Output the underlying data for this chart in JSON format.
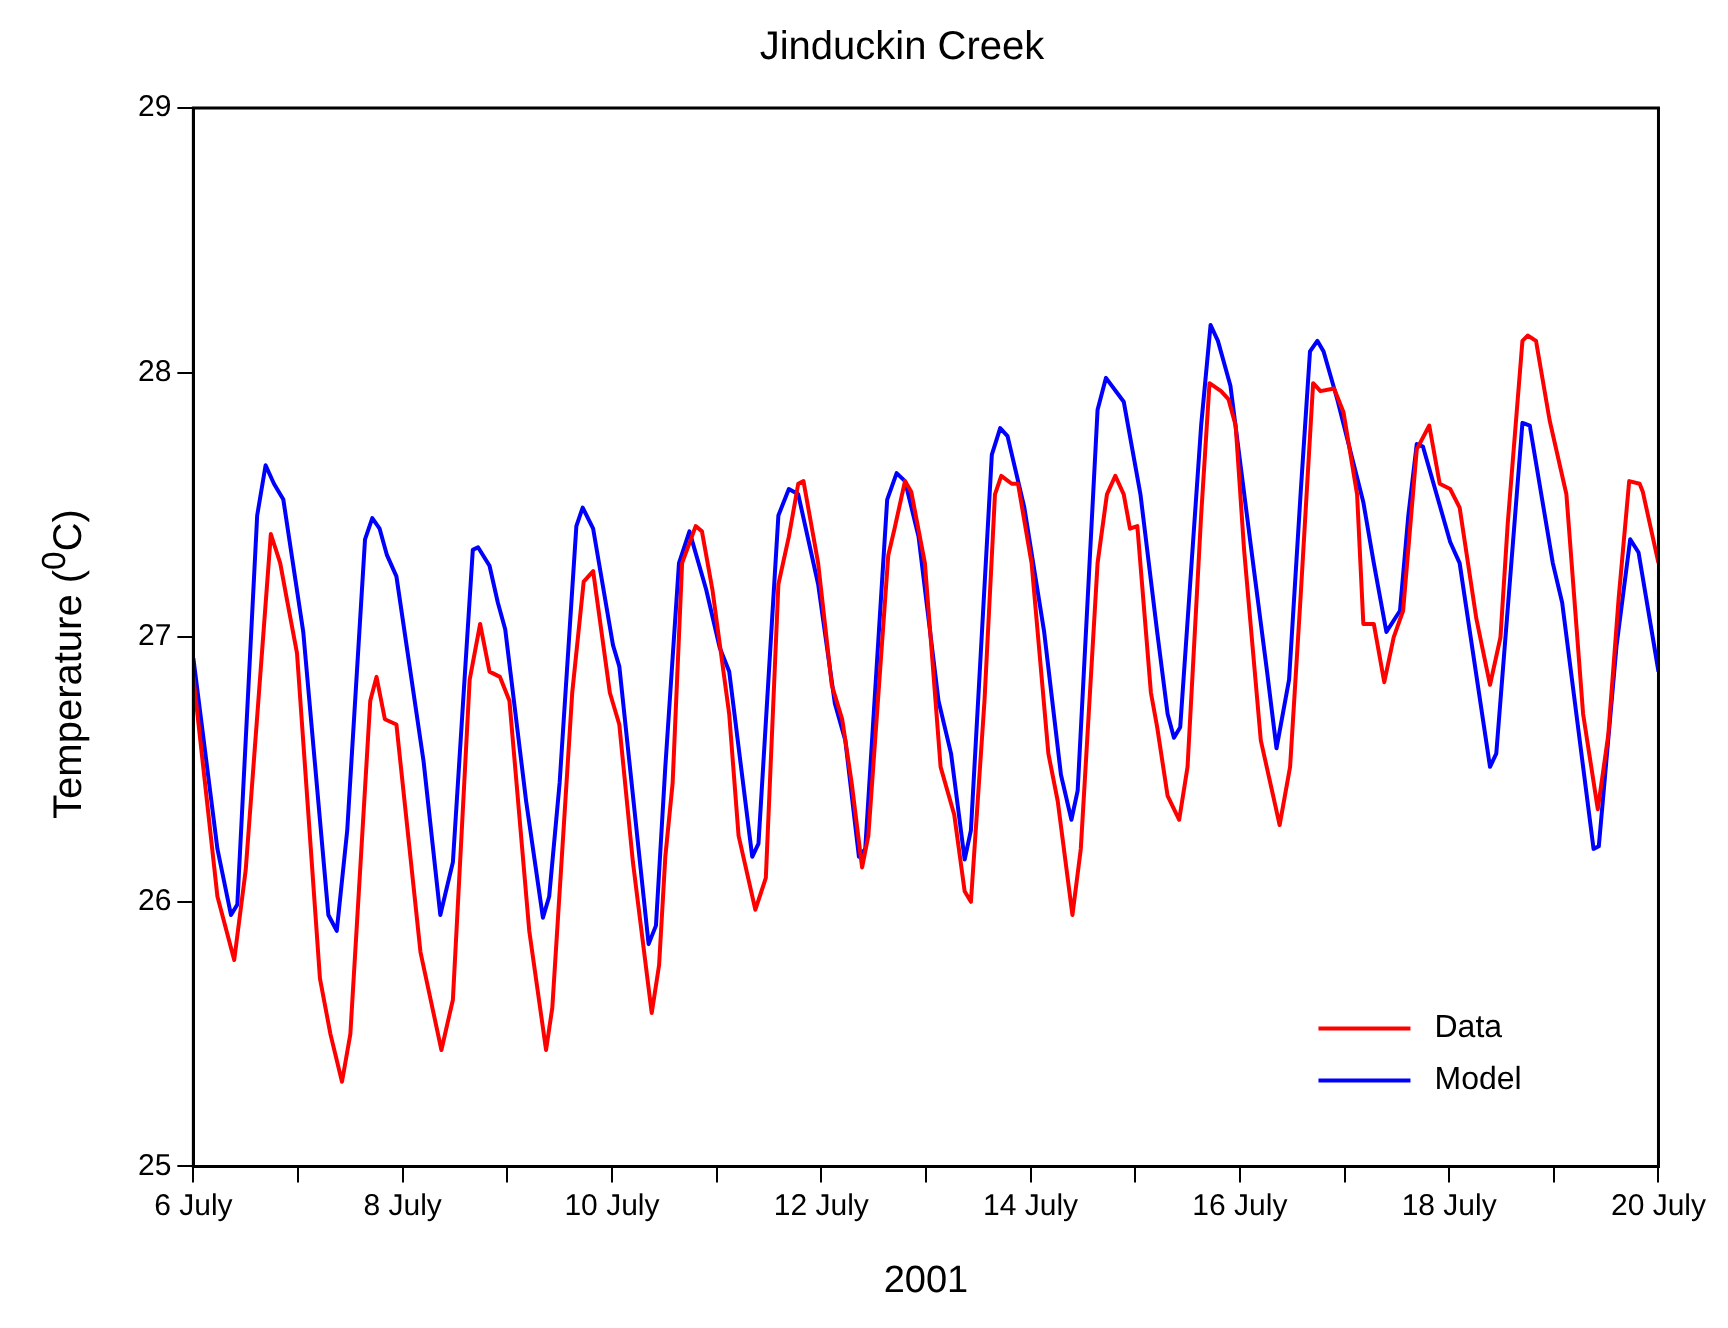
{
  "chart_data": {
    "type": "line",
    "title": "Jinduckin Creek",
    "xlabel": "2001",
    "ylabel": "Temperature ($^{0}$C)",
    "xlim": [
      "2001-07-06",
      "2001-07-20"
    ],
    "xticks": [
      {
        "value": "2001-07-06",
        "label": "6 July"
      },
      {
        "value": "2001-07-07",
        "label": null
      },
      {
        "value": "2001-07-08",
        "label": "8 July"
      },
      {
        "value": "2001-07-09",
        "label": null
      },
      {
        "value": "2001-07-10",
        "label": "10 July"
      },
      {
        "value": "2001-07-11",
        "label": null
      },
      {
        "value": "2001-07-12",
        "label": "12 July"
      },
      {
        "value": "2001-07-13",
        "label": null
      },
      {
        "value": "2001-07-14",
        "label": "14 July"
      },
      {
        "value": "2001-07-15",
        "label": null
      },
      {
        "value": "2001-07-16",
        "label": "16 July"
      },
      {
        "value": "2001-07-17",
        "label": null
      },
      {
        "value": "2001-07-18",
        "label": "18 July"
      },
      {
        "value": "2001-07-19",
        "label": null
      },
      {
        "value": "2001-07-20",
        "label": "20 July"
      }
    ],
    "ylim": [
      25,
      29
    ],
    "yticks": [
      25,
      26,
      27,
      28,
      29
    ],
    "grid": false,
    "legend": "bottom right",
    "marker": "none",
    "line_style": "solid",
    "series": [
      {
        "name": "Data",
        "color": "#ff0000",
        "x": [
          "2001-07-06T00:00",
          "2001-07-06T05:31",
          "2001-07-06T09:22",
          "2001-07-06T12:00",
          "2001-07-06T17:46",
          "2001-07-06T19:55",
          "2001-07-06T21:36",
          "2001-07-06T23:46",
          "2001-07-07T05:02",
          "2001-07-07T07:26",
          "2001-07-07T10:05",
          "2001-07-07T12:00",
          "2001-07-07T16:34",
          "2001-07-07T18:00",
          "2001-07-07T19:55",
          "2001-07-07T22:34",
          "2001-07-08T04:05",
          "2001-07-08T08:53",
          "2001-07-08T11:31",
          "2001-07-08T15:22",
          "2001-07-08T17:46",
          "2001-07-08T19:55",
          "2001-07-08T22:19",
          "2001-07-09T00:29",
          "2001-07-09T05:02",
          "2001-07-09T08:53",
          "2001-07-09T10:19",
          "2001-07-09T14:53",
          "2001-07-09T17:31",
          "2001-07-09T19:41",
          "2001-07-09T23:31",
          "2001-07-10T01:41",
          "2001-07-10T04:48",
          "2001-07-10T09:07",
          "2001-07-10T10:48",
          "2001-07-10T12:14",
          "2001-07-10T13:55",
          "2001-07-10T16:05",
          "2001-07-10T19:12",
          "2001-07-10T20:38",
          "2001-07-10T23:02",
          "2001-07-11T02:53",
          "2001-07-11T05:02",
          "2001-07-11T08:53",
          "2001-07-11T11:17",
          "2001-07-11T14:10",
          "2001-07-11T16:34",
          "2001-07-11T18:43",
          "2001-07-11T19:55",
          "2001-07-11T23:17",
          "2001-07-12T02:24",
          "2001-07-12T04:48",
          "2001-07-12T06:58",
          "2001-07-12T09:22",
          "2001-07-12T10:48",
          "2001-07-12T15:22",
          "2001-07-12T16:48",
          "2001-07-12T19:12",
          "2001-07-12T20:38",
          "2001-07-12T23:46",
          "2001-07-13T03:22",
          "2001-07-13T06:29",
          "2001-07-13T08:53",
          "2001-07-13T10:19",
          "2001-07-13T13:26",
          "2001-07-13T15:50",
          "2001-07-13T17:17",
          "2001-07-13T19:41",
          "2001-07-13T21:07",
          "2001-07-14T00:14",
          "2001-07-14T04:05",
          "2001-07-14T06:14",
          "2001-07-14T09:36",
          "2001-07-14T11:31",
          "2001-07-14T15:22",
          "2001-07-14T17:31",
          "2001-07-14T19:26",
          "2001-07-14T21:22",
          "2001-07-14T22:48",
          "2001-07-15T00:29",
          "2001-07-15T03:36",
          "2001-07-15T05:02",
          "2001-07-15T07:26",
          "2001-07-15T10:05",
          "2001-07-15T12:00",
          "2001-07-15T15:07",
          "2001-07-15T17:02",
          "2001-07-15T19:41",
          "2001-07-15T21:22",
          "2001-07-15T23:02",
          "2001-07-16T00:58",
          "2001-07-16T04:48",
          "2001-07-16T06:58",
          "2001-07-16T09:07",
          "2001-07-16T11:31",
          "2001-07-16T13:55",
          "2001-07-16T16:48",
          "2001-07-16T18:29",
          "2001-07-16T21:36",
          "2001-07-16T23:46",
          "2001-07-17T02:53",
          "2001-07-17T04:19",
          "2001-07-17T06:43",
          "2001-07-17T09:07",
          "2001-07-17T11:17",
          "2001-07-17T13:26",
          "2001-07-17T16:34",
          "2001-07-17T19:26",
          "2001-07-17T21:50",
          "2001-07-18T00:14",
          "2001-07-18T02:24",
          "2001-07-18T06:14",
          "2001-07-18T09:22",
          "2001-07-18T11:46",
          "2001-07-18T13:26",
          "2001-07-18T16:48",
          "2001-07-18T18:00",
          "2001-07-18T19:55",
          "2001-07-18T23:02",
          "2001-07-19T02:53",
          "2001-07-19T06:43",
          "2001-07-19T10:05",
          "2001-07-19T12:29",
          "2001-07-19T14:53",
          "2001-07-19T17:17",
          "2001-07-19T19:41",
          "2001-07-19T20:24",
          "2001-07-20T00:00"
        ],
        "values": [
          26.85,
          26.02,
          25.78,
          26.12,
          27.39,
          27.28,
          27.13,
          26.94,
          25.71,
          25.5,
          25.32,
          25.5,
          26.76,
          26.85,
          26.69,
          26.67,
          25.81,
          25.44,
          25.63,
          26.84,
          27.05,
          26.87,
          26.85,
          26.76,
          25.89,
          25.44,
          25.6,
          26.79,
          27.21,
          27.25,
          26.79,
          26.67,
          26.15,
          25.58,
          25.76,
          26.17,
          26.45,
          27.28,
          27.42,
          27.4,
          27.18,
          26.71,
          26.25,
          25.97,
          26.09,
          27.2,
          27.38,
          27.58,
          27.59,
          27.28,
          26.82,
          26.69,
          26.45,
          26.13,
          26.25,
          27.31,
          27.41,
          27.59,
          27.55,
          27.28,
          26.51,
          26.33,
          26.04,
          26.0,
          26.76,
          27.54,
          27.61,
          27.58,
          27.58,
          27.28,
          26.56,
          26.38,
          25.95,
          26.2,
          27.28,
          27.54,
          27.61,
          27.54,
          27.41,
          27.42,
          26.79,
          26.66,
          26.4,
          26.31,
          26.51,
          27.46,
          27.96,
          27.93,
          27.9,
          27.8,
          27.33,
          26.61,
          26.45,
          26.29,
          26.51,
          27.15,
          27.96,
          27.93,
          27.94,
          27.85,
          27.54,
          27.05,
          27.05,
          26.83,
          27.0,
          27.1,
          27.71,
          27.8,
          27.58,
          27.56,
          27.49,
          27.07,
          26.82,
          27.0,
          27.43,
          28.12,
          28.14,
          28.12,
          27.82,
          27.54,
          26.71,
          26.35,
          26.63,
          27.15,
          27.59,
          27.58,
          27.55,
          27.28
        ]
      },
      {
        "name": "Model",
        "color": "#0000ff",
        "x": [
          "2001-07-06T00:00",
          "2001-07-06T05:31",
          "2001-07-06T08:38",
          "2001-07-06T10:05",
          "2001-07-06T14:38",
          "2001-07-06T16:34",
          "2001-07-06T18:29",
          "2001-07-06T20:38",
          "2001-07-07T01:12",
          "2001-07-07T06:58",
          "2001-07-07T08:53",
          "2001-07-07T11:17",
          "2001-07-07T15:22",
          "2001-07-07T17:02",
          "2001-07-07T18:43",
          "2001-07-07T20:24",
          "2001-07-07T22:34",
          "2001-07-08T04:48",
          "2001-07-08T08:38",
          "2001-07-08T11:31",
          "2001-07-08T16:05",
          "2001-07-08T17:17",
          "2001-07-08T19:55",
          "2001-07-08T21:50",
          "2001-07-08T23:31",
          "2001-07-09T04:19",
          "2001-07-09T08:10",
          "2001-07-09T09:36",
          "2001-07-09T12:00",
          "2001-07-09T15:50",
          "2001-07-09T17:17",
          "2001-07-09T19:41",
          "2001-07-10T00:14",
          "2001-07-10T01:41",
          "2001-07-10T08:24",
          "2001-07-10T10:05",
          "2001-07-10T12:14",
          "2001-07-10T15:22",
          "2001-07-10T17:46",
          "2001-07-10T21:36",
          "2001-07-11T00:43",
          "2001-07-11T02:53",
          "2001-07-11T08:10",
          "2001-07-11T09:36",
          "2001-07-11T14:10",
          "2001-07-11T16:34",
          "2001-07-11T18:43",
          "2001-07-11T23:17",
          "2001-07-12T03:07",
          "2001-07-12T05:31",
          "2001-07-12T08:38",
          "2001-07-12T10:05",
          "2001-07-12T15:07",
          "2001-07-12T17:17",
          "2001-07-12T19:12",
          "2001-07-12T22:19",
          "2001-07-13T02:53",
          "2001-07-13T05:46",
          "2001-07-13T08:53",
          "2001-07-13T10:19",
          "2001-07-13T15:07",
          "2001-07-13T17:02",
          "2001-07-13T18:43",
          "2001-07-13T22:34",
          "2001-07-14T03:07",
          "2001-07-14T06:58",
          "2001-07-14T09:22",
          "2001-07-14T10:48",
          "2001-07-14T15:22",
          "2001-07-14T17:17",
          "2001-07-14T21:22",
          "2001-07-15T01:12",
          "2001-07-15T05:02",
          "2001-07-15T07:26",
          "2001-07-15T08:53",
          "2001-07-15T10:19",
          "2001-07-15T15:07",
          "2001-07-15T17:17",
          "2001-07-15T18:58",
          "2001-07-15T21:50",
          "2001-07-16T02:24",
          "2001-07-16T06:14",
          "2001-07-16T08:24",
          "2001-07-16T11:17",
          "2001-07-16T13:55",
          "2001-07-16T16:05",
          "2001-07-16T17:46",
          "2001-07-16T19:12",
          "2001-07-16T22:19",
          "2001-07-17T04:19",
          "2001-07-17T06:43",
          "2001-07-17T09:36",
          "2001-07-17T12:43",
          "2001-07-17T14:38",
          "2001-07-17T16:34",
          "2001-07-17T18:00",
          "2001-07-18T00:14",
          "2001-07-18T02:24",
          "2001-07-18T09:22",
          "2001-07-18T10:48",
          "2001-07-18T16:48",
          "2001-07-18T18:29",
          "2001-07-18T23:46",
          "2001-07-19T01:55",
          "2001-07-19T09:07",
          "2001-07-19T10:19",
          "2001-07-19T14:24",
          "2001-07-19T17:31",
          "2001-07-19T19:26",
          "2001-07-20T00:00"
        ],
        "values": [
          26.92,
          26.2,
          25.95,
          25.99,
          27.46,
          27.65,
          27.58,
          27.52,
          27.02,
          25.95,
          25.89,
          26.27,
          27.37,
          27.45,
          27.41,
          27.31,
          27.23,
          26.53,
          25.95,
          26.15,
          27.33,
          27.34,
          27.27,
          27.13,
          27.03,
          26.38,
          25.94,
          26.02,
          26.45,
          27.42,
          27.49,
          27.41,
          26.97,
          26.89,
          25.84,
          25.91,
          26.51,
          27.28,
          27.4,
          27.18,
          26.96,
          26.87,
          26.17,
          26.22,
          27.46,
          27.56,
          27.54,
          27.2,
          26.75,
          26.61,
          26.17,
          26.2,
          27.52,
          27.62,
          27.59,
          27.38,
          26.76,
          26.56,
          26.16,
          26.27,
          27.69,
          27.79,
          27.76,
          27.49,
          27.02,
          26.48,
          26.31,
          26.42,
          27.86,
          27.98,
          27.89,
          27.54,
          27.02,
          26.71,
          26.62,
          26.66,
          27.8,
          28.18,
          28.12,
          27.95,
          27.36,
          26.87,
          26.58,
          26.84,
          27.54,
          28.08,
          28.12,
          28.08,
          27.9,
          27.51,
          27.28,
          27.02,
          27.1,
          27.46,
          27.73,
          27.72,
          27.36,
          27.28,
          26.51,
          26.56,
          27.81,
          27.8,
          27.28,
          27.13,
          26.2,
          26.21,
          26.97,
          27.37,
          27.32,
          26.87
        ]
      }
    ]
  }
}
